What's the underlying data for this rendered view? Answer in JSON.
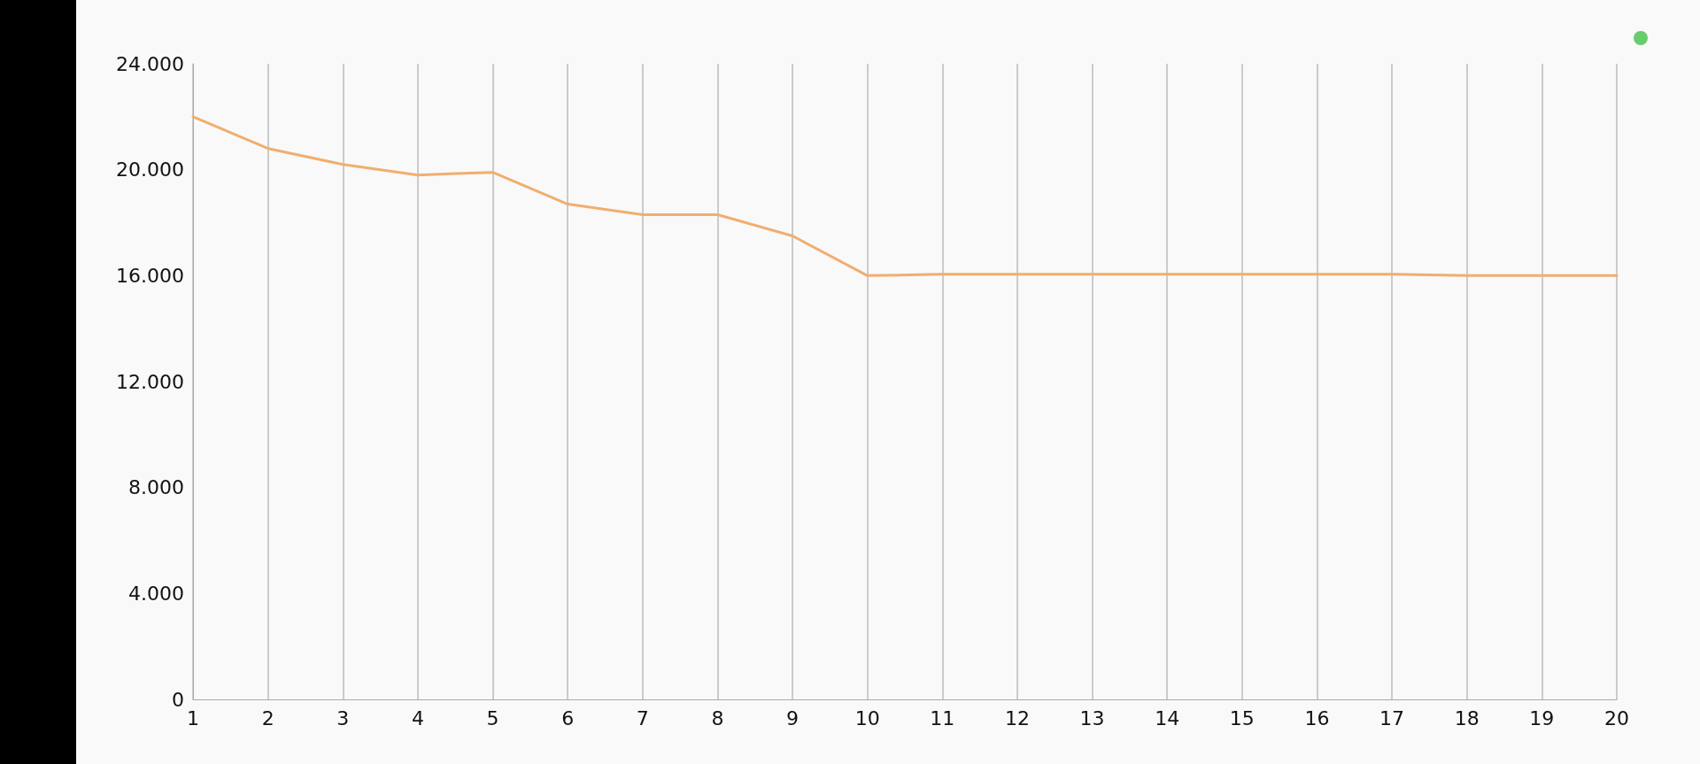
{
  "chart_data": {
    "type": "line",
    "x": [
      1,
      2,
      3,
      4,
      5,
      6,
      7,
      8,
      9,
      10,
      11,
      12,
      13,
      14,
      15,
      16,
      17,
      18,
      19,
      20
    ],
    "series": [
      {
        "color": "#f0ae70",
        "values": [
          22000,
          20800,
          20200,
          19800,
          19900,
          18700,
          18300,
          18300,
          17500,
          16000,
          16050,
          16050,
          16050,
          16050,
          16050,
          16050,
          16050,
          16000,
          16000,
          16000
        ]
      }
    ],
    "xlim": [
      1,
      20
    ],
    "xticks": [
      1,
      2,
      3,
      4,
      5,
      6,
      7,
      8,
      9,
      10,
      11,
      12,
      13,
      14,
      15,
      16,
      17,
      18,
      19,
      20
    ],
    "ylim": [
      0,
      24000
    ],
    "yticks": [
      {
        "value": 0,
        "label": "0"
      },
      {
        "value": 4000,
        "label": "4.000"
      },
      {
        "value": 8000,
        "label": "8.000"
      },
      {
        "value": 12000,
        "label": "12.000"
      },
      {
        "value": 16000,
        "label": "16.000"
      },
      {
        "value": 20000,
        "label": "20.000"
      },
      {
        "value": 24000,
        "label": "24.000"
      }
    ],
    "grid": "x",
    "marker": "none",
    "line_style": "solid"
  }
}
